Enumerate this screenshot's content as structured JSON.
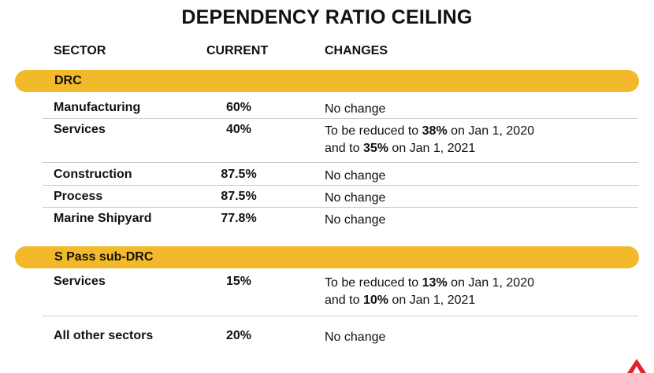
{
  "title": "DEPENDENCY RATIO CEILING",
  "headers": {
    "sector": "SECTOR",
    "current": "CURRENT",
    "changes": "CHANGES"
  },
  "colors": {
    "band": "#f2b92a",
    "logo": "#e3232b"
  },
  "sections": [
    {
      "label": "DRC",
      "rows": [
        {
          "sector": "Manufacturing",
          "current": "60%",
          "change": "No change"
        },
        {
          "sector": "Services",
          "current": "40%",
          "change_line1": {
            "pre": "To be reduced to ",
            "bold": "38%",
            "post": " on Jan 1, 2020"
          },
          "change_line2": {
            "pre": "and to ",
            "bold": "35%",
            "post": " on Jan 1, 2021"
          }
        },
        {
          "sector": "Construction",
          "current": "87.5%",
          "change": "No change"
        },
        {
          "sector": "Process",
          "current": "87.5%",
          "change": "No change"
        },
        {
          "sector": "Marine Shipyard",
          "current": "77.8%",
          "change": "No change"
        }
      ]
    },
    {
      "label": "S Pass sub-DRC",
      "rows": [
        {
          "sector": "Services",
          "current": "15%",
          "change_line1": {
            "pre": "To be reduced to ",
            "bold": "13%",
            "post": " on Jan 1, 2020"
          },
          "change_line2": {
            "pre": "and to ",
            "bold": "10%",
            "post": " on Jan 1, 2021"
          }
        },
        {
          "sector": "All other sectors",
          "current": "20%",
          "change": "No change"
        }
      ]
    }
  ],
  "logo_icon": "red-triangle-logo-icon"
}
